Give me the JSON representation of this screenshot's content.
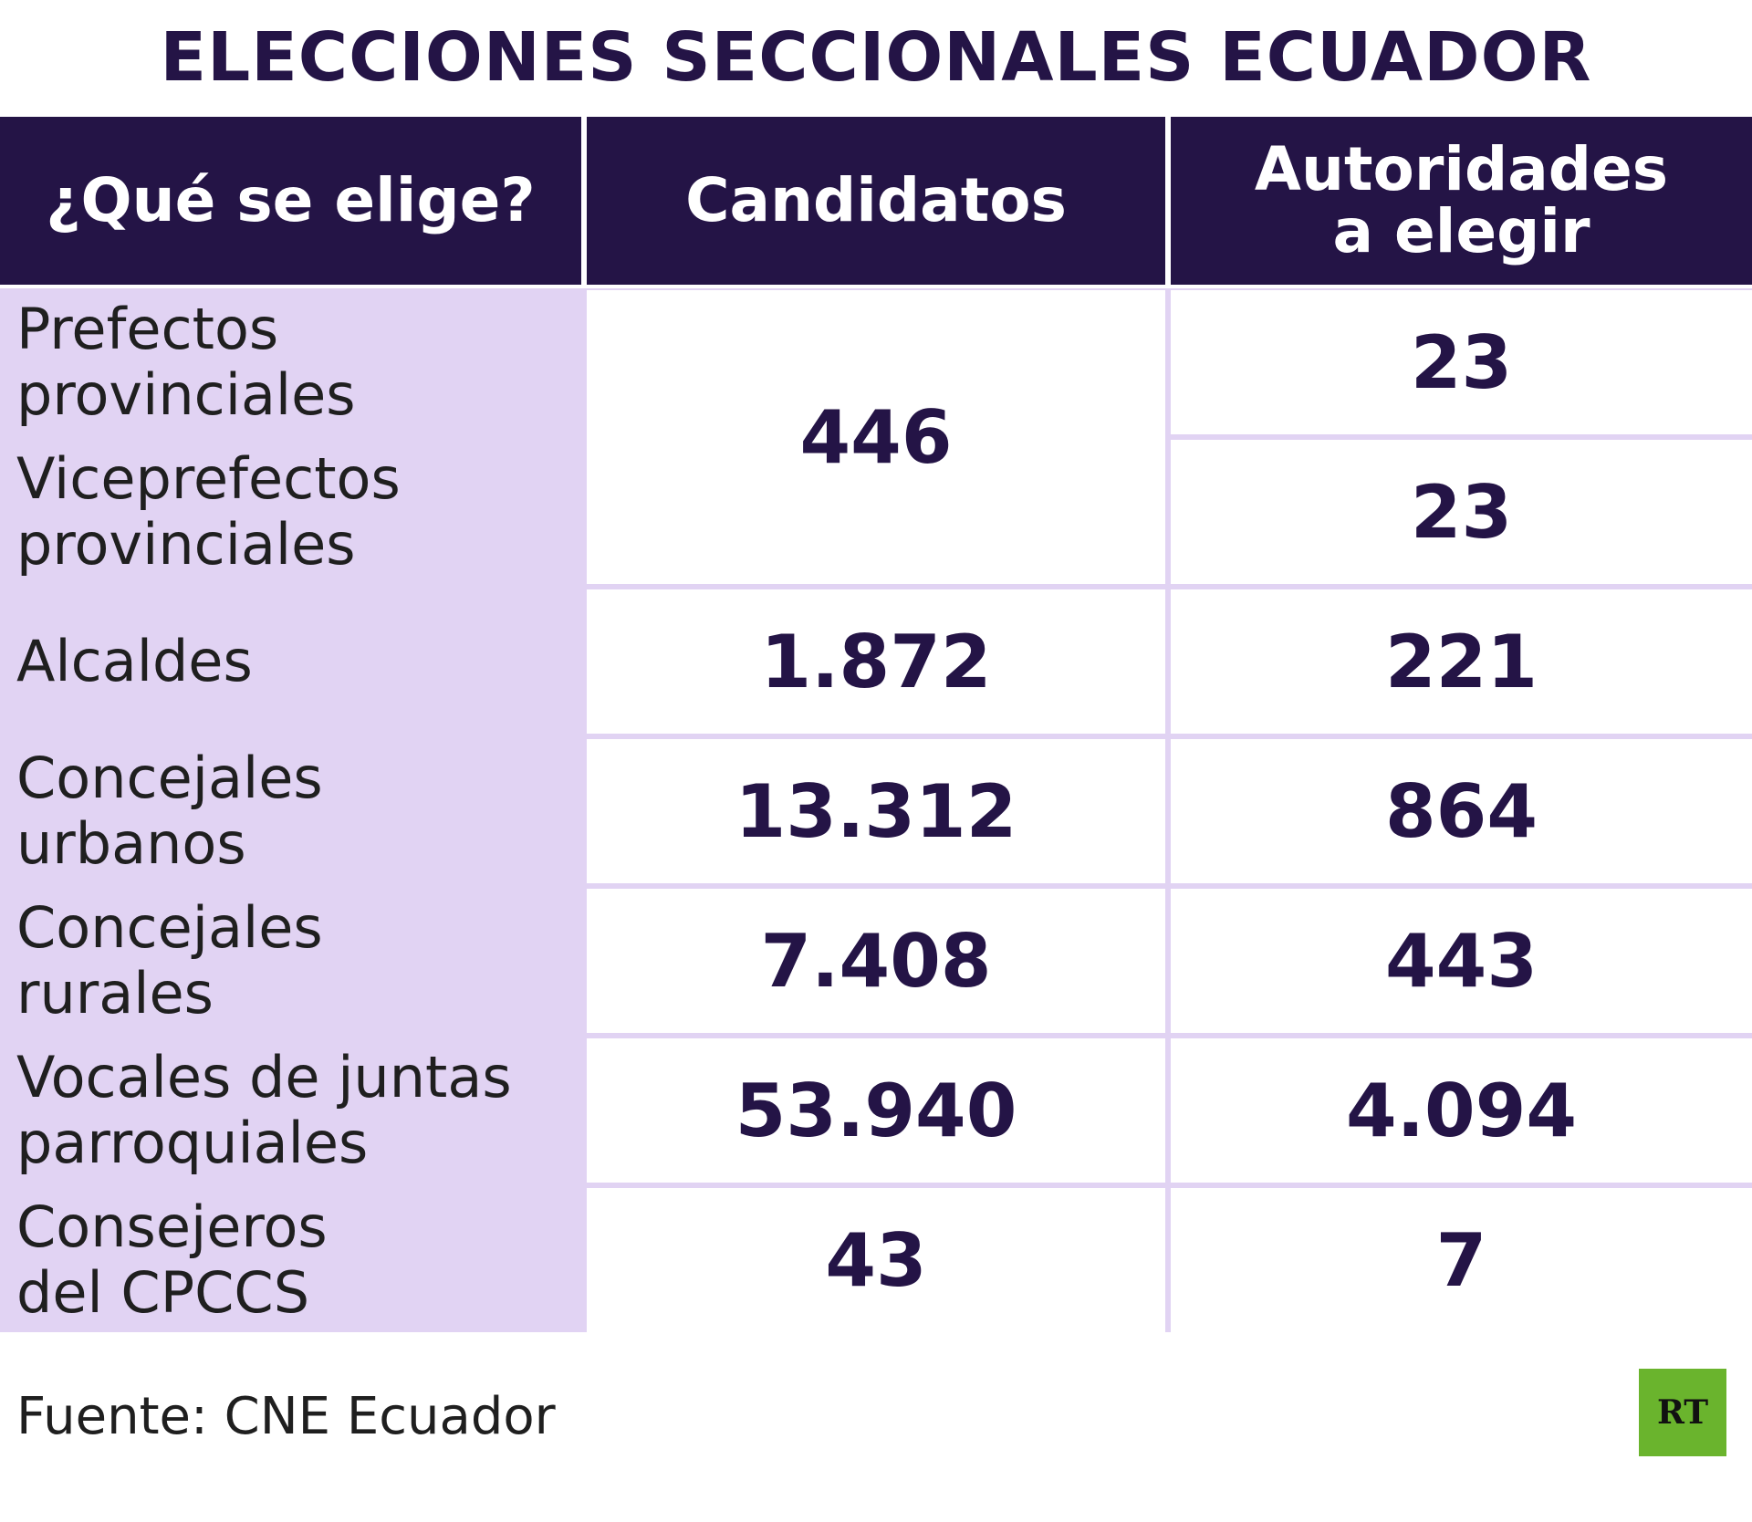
{
  "title": "ELECCIONES SECCIONALES ECUADOR",
  "source": "Fuente: CNE Ecuador",
  "logo": "RT",
  "colors": {
    "header_bg": "#241446",
    "label_bg": "#e1d3f3",
    "value_text": "#241446",
    "logo_bg": "#6ab42d"
  },
  "chart_data": {
    "type": "table",
    "title": "ELECCIONES SECCIONALES ECUADOR",
    "columns": [
      "¿Qué se elige?",
      "Candidatos",
      "Autoridades a elegir"
    ],
    "rows": [
      {
        "label": "Prefectos provinciales",
        "candidatos": "446",
        "autoridades": "23"
      },
      {
        "label": "Viceprefectos provinciales",
        "candidatos": "446",
        "autoridades": "23"
      },
      {
        "label": "Alcaldes",
        "candidatos": "1.872",
        "autoridades": "221"
      },
      {
        "label": "Concejales urbanos",
        "candidatos": "13.312",
        "autoridades": "864"
      },
      {
        "label": "Concejales rurales",
        "candidatos": "7.408",
        "autoridades": "443"
      },
      {
        "label": "Vocales de juntas parroquiales",
        "candidatos": "53.940",
        "autoridades": "4.094"
      },
      {
        "label": "Consejeros del CPCCS",
        "candidatos": "43",
        "autoridades": "7"
      }
    ],
    "notes": "Candidatos value 446 is shared by Prefectos and Viceprefectos provinciales (merged cell)."
  },
  "table": {
    "headers": {
      "col1": "¿Qué se elige?",
      "col2": "Candidatos",
      "col3_line1": "Autoridades",
      "col3_line2": "a elegir"
    },
    "rows": [
      {
        "line1": "Prefectos",
        "line2": "provinciales",
        "candidatos": "446",
        "autoridades": "23"
      },
      {
        "line1": "Viceprefectos",
        "line2": "provinciales",
        "autoridades": "23"
      },
      {
        "line1": "Alcaldes",
        "line2": "",
        "candidatos": "1.872",
        "autoridades": "221"
      },
      {
        "line1": "Concejales",
        "line2": "urbanos",
        "candidatos": "13.312",
        "autoridades": "864"
      },
      {
        "line1": "Concejales",
        "line2": "rurales",
        "candidatos": "7.408",
        "autoridades": "443"
      },
      {
        "line1": "Vocales de juntas",
        "line2": "parroquiales",
        "candidatos": "53.940",
        "autoridades": "4.094"
      },
      {
        "line1": "Consejeros",
        "line2": "del CPCCS",
        "candidatos": "43",
        "autoridades": "7"
      }
    ]
  }
}
